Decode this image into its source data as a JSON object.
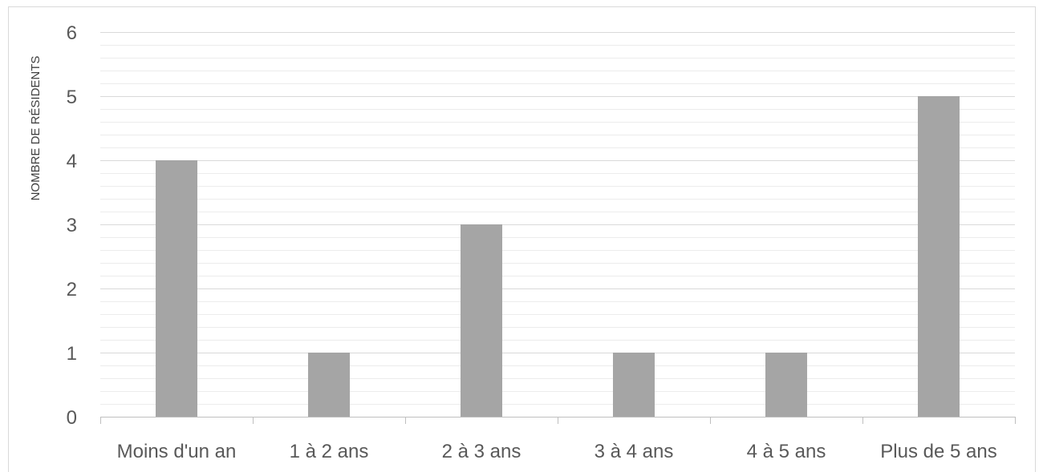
{
  "chart_data": {
    "type": "bar",
    "title": "",
    "xlabel": "",
    "ylabel": "NOMBRE DE RÉSIDENTS",
    "categories": [
      "Moins d'un an",
      "1 à 2 ans",
      "2 à 3 ans",
      "3 à 4 ans",
      "4 à 5 ans",
      "Plus de 5 ans"
    ],
    "values": [
      4,
      1,
      3,
      1,
      1,
      5
    ],
    "ylim": [
      0,
      6
    ],
    "y_major_ticks": [
      0,
      1,
      2,
      3,
      4,
      5,
      6
    ],
    "y_minor_step": 0.2,
    "grid": true,
    "legend": "none",
    "bar_color": "#a5a5a5"
  }
}
